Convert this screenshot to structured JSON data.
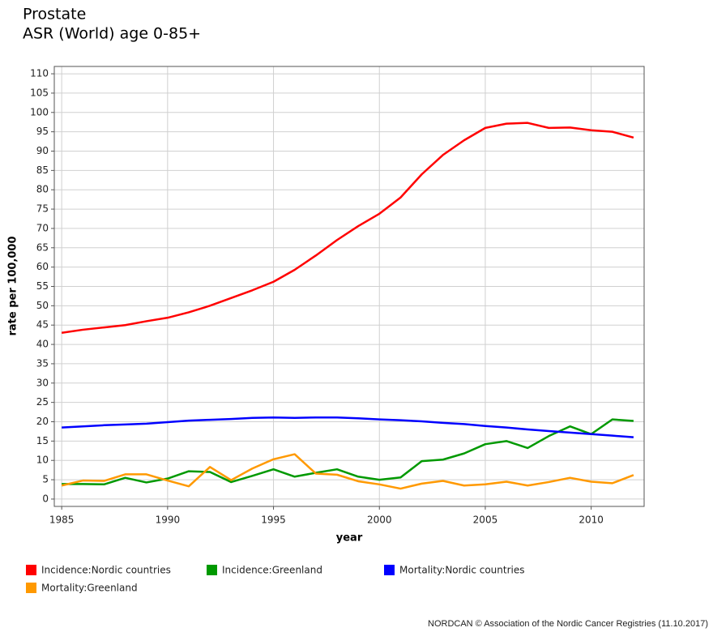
{
  "chart_data": {
    "type": "line",
    "title": "Prostate",
    "subtitle": "ASR (World) age 0-85+",
    "x_label": "year",
    "y_label": "rate per 100,000",
    "x": [
      1985,
      1986,
      1987,
      1988,
      1989,
      1990,
      1991,
      1992,
      1993,
      1994,
      1995,
      1996,
      1997,
      1998,
      1999,
      2000,
      2001,
      2002,
      2003,
      2004,
      2005,
      2006,
      2007,
      2008,
      2009,
      2010,
      2011,
      2012
    ],
    "series": [
      {
        "name": "Incidence:Nordic countries",
        "color": "#ff0000",
        "values": [
          43,
          43.8,
          44.4,
          45,
          46,
          46.9,
          48.3,
          50,
          52,
          54,
          56.2,
          59.3,
          63,
          67,
          70.6,
          73.8,
          78,
          84,
          89,
          92.8,
          96,
          97.1,
          97.3,
          96,
          96.1,
          95.4,
          95,
          93.5
        ]
      },
      {
        "name": "Incidence:Greenland",
        "color": "#009900",
        "values": [
          3.9,
          3.9,
          3.8,
          5.5,
          4.3,
          5.3,
          7.2,
          7,
          4.4,
          6,
          7.7,
          5.8,
          6.8,
          7.7,
          5.8,
          5,
          5.6,
          9.8,
          10.2,
          11.8,
          14.2,
          15,
          13.2,
          16.3,
          18.8,
          16.8,
          20.6,
          20.2
        ]
      },
      {
        "name": "Mortality:Nordic countries",
        "color": "#0000ff",
        "values": [
          18.5,
          18.8,
          19.1,
          19.3,
          19.5,
          19.9,
          20.3,
          20.5,
          20.7,
          21,
          21.1,
          21,
          21.1,
          21.1,
          20.9,
          20.6,
          20.4,
          20.1,
          19.7,
          19.4,
          18.9,
          18.5,
          18,
          17.6,
          17.2,
          16.8,
          16.4,
          16
        ]
      },
      {
        "name": "Mortality:Greenland",
        "color": "#ff9900",
        "values": [
          3.5,
          4.8,
          4.7,
          6.4,
          6.4,
          4.8,
          3.3,
          8.3,
          4.9,
          7.9,
          10.3,
          11.6,
          6.6,
          6.3,
          4.6,
          3.8,
          2.7,
          4,
          4.7,
          3.5,
          3.8,
          4.5,
          3.5,
          4.4,
          5.5,
          4.5,
          4.1,
          6.2
        ]
      }
    ],
    "xlim": [
      1984.65,
      2012.5
    ],
    "xticks": [
      1985,
      1990,
      1995,
      2000,
      2005,
      2010
    ],
    "ylim": [
      -1.9,
      111.9
    ],
    "yticks": [
      0,
      5,
      10,
      15,
      20,
      25,
      30,
      35,
      40,
      45,
      50,
      55,
      60,
      65,
      70,
      75,
      80,
      85,
      90,
      95,
      100,
      105,
      110
    ],
    "grid": true,
    "footer": "NORDCAN © Association of the Nordic Cancer Registries (11.10.2017)"
  }
}
